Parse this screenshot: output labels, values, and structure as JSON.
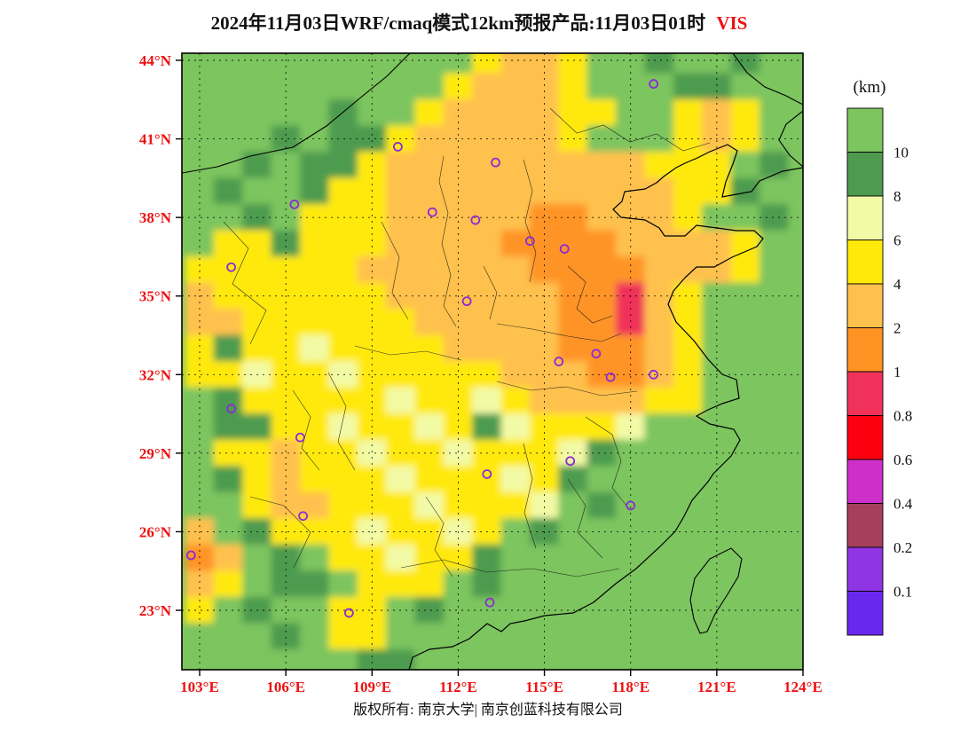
{
  "title": {
    "main": "2024年11月03日WRF/cmaq模式12km预报产品:11月03日01时",
    "variable": "VIS"
  },
  "footer": {
    "copyright": "版权所有: 南京大学| 南京创蓝科技有限公司"
  },
  "axes": {
    "label_color": "#ee1111",
    "lon": {
      "values": [
        103,
        106,
        109,
        112,
        115,
        118,
        121,
        124
      ],
      "labels": [
        "103°E",
        "106°E",
        "109°E",
        "112°E",
        "115°E",
        "118°E",
        "121°E",
        "124°E"
      ]
    },
    "lat": {
      "values": [
        44,
        41,
        38,
        35,
        32,
        29,
        26,
        23
      ],
      "labels": [
        "44°N",
        "41°N",
        "38°N",
        "35°N",
        "32°N",
        "29°N",
        "26°N",
        "23°N"
      ]
    }
  },
  "legend": {
    "unit": "(km)",
    "labels": [
      "10",
      "8",
      "6",
      "4",
      "2",
      "1",
      "0.8",
      "0.6",
      "0.4",
      "0.2",
      "0.1"
    ],
    "colors": [
      "#7DC55E",
      "#4E9B4F",
      "#F3FAA6",
      "#FFE90A",
      "#FFC14E",
      "#FF9425",
      "#F0325A",
      "#FD0010",
      "#CE2FC8",
      "#A53F5C",
      "#8F35E3",
      "#6A28EE"
    ]
  },
  "markers": {
    "symbol": "open-circle",
    "color": "#8B2BD6",
    "points": [
      [
        118.8,
        43.1
      ],
      [
        109.9,
        40.7
      ],
      [
        113.3,
        40.1
      ],
      [
        106.3,
        38.5
      ],
      [
        111.1,
        38.2
      ],
      [
        112.6,
        37.9
      ],
      [
        114.5,
        37.1
      ],
      [
        115.7,
        36.8
      ],
      [
        104.1,
        36.1
      ],
      [
        112.3,
        34.8
      ],
      [
        116.8,
        32.8
      ],
      [
        115.5,
        32.5
      ],
      [
        117.3,
        31.9
      ],
      [
        118.8,
        32.0
      ],
      [
        104.1,
        30.7
      ],
      [
        106.5,
        29.6
      ],
      [
        113.0,
        28.2
      ],
      [
        115.9,
        28.7
      ],
      [
        118.0,
        27.0
      ],
      [
        106.6,
        26.6
      ],
      [
        102.7,
        25.1
      ],
      [
        113.1,
        23.3
      ],
      [
        108.2,
        22.9
      ]
    ]
  },
  "chart_data": {
    "type": "heatmap",
    "title": "2024年11月03日WRF/cmaq模式12km预报产品:11月03日01时 VIS",
    "units": "km",
    "xlabel": "",
    "ylabel": "",
    "x_range": [
      102.4,
      124.0
    ],
    "y_range": [
      20.7,
      44.3
    ],
    "levels": [
      0.1,
      0.2,
      0.4,
      0.6,
      0.8,
      1,
      2,
      4,
      6,
      8,
      10
    ],
    "x": [
      103,
      104,
      105,
      106,
      107,
      108,
      109,
      110,
      111,
      112,
      113,
      114,
      115,
      116,
      117,
      118,
      119,
      120,
      121,
      122,
      123,
      124
    ],
    "y": [
      44,
      43,
      42,
      41,
      40,
      39,
      38,
      37,
      36,
      35,
      34,
      33,
      32,
      31,
      30,
      29,
      28,
      27,
      26,
      25,
      24,
      23,
      22,
      21
    ],
    "values": [
      [
        12,
        12,
        12,
        12,
        12,
        12,
        12,
        12,
        12,
        12,
        5,
        3,
        3,
        5,
        12,
        12,
        9,
        12,
        12,
        9,
        12,
        12
      ],
      [
        12,
        12,
        12,
        12,
        12,
        12,
        12,
        12,
        12,
        5,
        3,
        3,
        3,
        5,
        12,
        12,
        12,
        9,
        9,
        12,
        12,
        12
      ],
      [
        12,
        12,
        12,
        12,
        12,
        9,
        12,
        12,
        5,
        3,
        3,
        3,
        3,
        5,
        5,
        12,
        12,
        5,
        3,
        5,
        12,
        12
      ],
      [
        12,
        12,
        12,
        9,
        12,
        9,
        9,
        5,
        3,
        3,
        3,
        3,
        3,
        5,
        12,
        12,
        12,
        5,
        3,
        5,
        12,
        12
      ],
      [
        12,
        12,
        9,
        12,
        9,
        9,
        5,
        3,
        3,
        3,
        3,
        3,
        3,
        3,
        3,
        3,
        5,
        5,
        5,
        12,
        9,
        12
      ],
      [
        12,
        9,
        12,
        12,
        9,
        5,
        5,
        3,
        3,
        3,
        3,
        3,
        3,
        3,
        3,
        3,
        3,
        5,
        5,
        9,
        12,
        12
      ],
      [
        12,
        12,
        9,
        12,
        5,
        5,
        5,
        3,
        3,
        3,
        3,
        3,
        1.5,
        1.5,
        3,
        3,
        3,
        5,
        12,
        12,
        9,
        12
      ],
      [
        12,
        5,
        5,
        9,
        5,
        5,
        5,
        3,
        3,
        3,
        3,
        1.5,
        1.5,
        1.5,
        1.5,
        3,
        3,
        3,
        3,
        5,
        12,
        12
      ],
      [
        5,
        5,
        5,
        5,
        5,
        5,
        3,
        3,
        3,
        3,
        3,
        3,
        1.5,
        1.5,
        1.5,
        1.5,
        3,
        3,
        3,
        5,
        12,
        12
      ],
      [
        3,
        5,
        5,
        5,
        5,
        5,
        5,
        3,
        3,
        3,
        3,
        3,
        3,
        1.5,
        1.5,
        0.9,
        3,
        5,
        12,
        12,
        12,
        12
      ],
      [
        3,
        3,
        5,
        5,
        5,
        5,
        5,
        5,
        3,
        3,
        3,
        3,
        3,
        1.5,
        1.5,
        0.9,
        3,
        5,
        12,
        12,
        12,
        12
      ],
      [
        5,
        9,
        5,
        5,
        7,
        5,
        5,
        5,
        5,
        3,
        3,
        3,
        3,
        1.5,
        1.5,
        1.5,
        3,
        5,
        12,
        12,
        12,
        12
      ],
      [
        5,
        5,
        7,
        5,
        5,
        7,
        5,
        5,
        5,
        5,
        5,
        3,
        3,
        3,
        1.5,
        1.5,
        3,
        5,
        12,
        12,
        12,
        12
      ],
      [
        12,
        9,
        5,
        5,
        5,
        5,
        5,
        7,
        5,
        5,
        7,
        5,
        3,
        3,
        3,
        3,
        5,
        5,
        12,
        12,
        12,
        12
      ],
      [
        12,
        9,
        9,
        5,
        5,
        7,
        5,
        5,
        7,
        5,
        9,
        7,
        5,
        5,
        5,
        7,
        12,
        12,
        12,
        12,
        12,
        12
      ],
      [
        12,
        5,
        5,
        3,
        5,
        5,
        7,
        5,
        5,
        7,
        5,
        5,
        5,
        7,
        9,
        12,
        12,
        12,
        12,
        12,
        12,
        12
      ],
      [
        12,
        9,
        5,
        3,
        5,
        5,
        5,
        7,
        5,
        5,
        5,
        7,
        5,
        9,
        12,
        12,
        12,
        12,
        12,
        12,
        12,
        12
      ],
      [
        12,
        12,
        5,
        3,
        3,
        5,
        5,
        5,
        7,
        5,
        5,
        5,
        7,
        12,
        9,
        12,
        12,
        12,
        12,
        12,
        12,
        12
      ],
      [
        3,
        12,
        9,
        5,
        5,
        5,
        7,
        5,
        5,
        7,
        5,
        12,
        9,
        12,
        12,
        12,
        12,
        12,
        12,
        12,
        12,
        12
      ],
      [
        1.5,
        3,
        12,
        9,
        12,
        5,
        5,
        7,
        5,
        5,
        9,
        12,
        12,
        12,
        12,
        12,
        12,
        12,
        12,
        12,
        12,
        12
      ],
      [
        3,
        5,
        12,
        9,
        9,
        12,
        5,
        5,
        5,
        12,
        9,
        12,
        12,
        12,
        12,
        12,
        12,
        12,
        12,
        12,
        12,
        12
      ],
      [
        5,
        12,
        9,
        12,
        12,
        5,
        5,
        12,
        9,
        12,
        12,
        12,
        12,
        12,
        12,
        12,
        12,
        12,
        12,
        12,
        12,
        12
      ],
      [
        12,
        12,
        12,
        9,
        12,
        5,
        5,
        12,
        12,
        12,
        12,
        12,
        12,
        12,
        12,
        12,
        12,
        12,
        12,
        12,
        12,
        12
      ],
      [
        12,
        12,
        12,
        12,
        12,
        12,
        9,
        9,
        12,
        12,
        12,
        12,
        12,
        12,
        12,
        12,
        12,
        12,
        12,
        12,
        12,
        12
      ]
    ]
  }
}
